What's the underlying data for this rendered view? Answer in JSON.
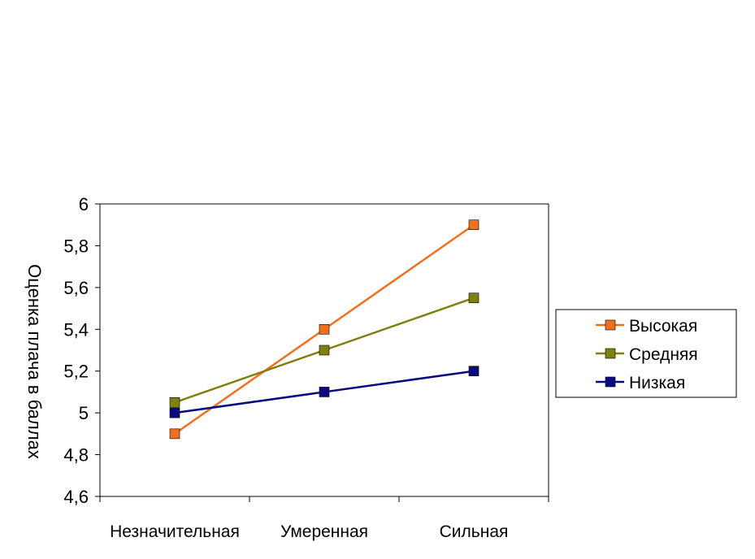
{
  "chart_data": {
    "type": "line",
    "categories": [
      "Незначительная",
      "Умеренная",
      "Сильная"
    ],
    "ylabel": "Оценка плача в баллах",
    "ylim": [
      4.6,
      6
    ],
    "ytick_step": 0.2,
    "yticks": [
      "4,6",
      "4,8",
      "5",
      "5,2",
      "5,4",
      "5,6",
      "5,8",
      "6"
    ],
    "grid": false,
    "legend_position": "right",
    "series": [
      {
        "name": "Высокая",
        "values": [
          4.9,
          5.4,
          5.9
        ],
        "color": "#f07020"
      },
      {
        "name": "Средняя",
        "values": [
          5.05,
          5.3,
          5.55
        ],
        "color": "#808010"
      },
      {
        "name": "Низкая",
        "values": [
          5.0,
          5.1,
          5.2
        ],
        "color": "#0a0a80"
      }
    ]
  }
}
